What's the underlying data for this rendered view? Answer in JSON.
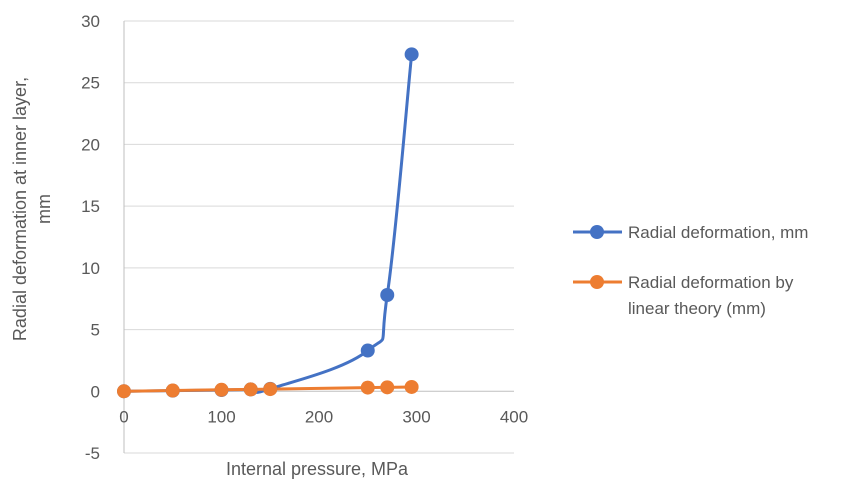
{
  "chart_data": {
    "type": "scatter",
    "title": "",
    "xlabel": "Internal pressure, MPa",
    "ylabel_lines": [
      "Radial deformation at inner layer,",
      "mm"
    ],
    "xlim": [
      0,
      400
    ],
    "ylim": [
      -5,
      30
    ],
    "x_ticks": [
      0,
      100,
      200,
      300,
      400
    ],
    "y_ticks": [
      -5,
      0,
      5,
      10,
      15,
      20,
      25,
      30
    ],
    "gridlines": "horizontal",
    "legend_position": "right",
    "series": [
      {
        "name": "Radial deformation, mm",
        "color": "#4472C4",
        "smooth": true,
        "x": [
          0,
          50,
          100,
          130,
          150,
          250,
          270,
          295
        ],
        "y": [
          0,
          0.05,
          0.1,
          0.15,
          0.2,
          3.3,
          7.8,
          27.3
        ]
      },
      {
        "name_lines": [
          "Radial deformation by",
          "linear theory (mm)"
        ],
        "color": "#ED7D31",
        "smooth": false,
        "x": [
          0,
          50,
          100,
          130,
          150,
          250,
          270,
          295
        ],
        "y": [
          0,
          0.06,
          0.12,
          0.15,
          0.18,
          0.3,
          0.32,
          0.35
        ]
      }
    ]
  }
}
